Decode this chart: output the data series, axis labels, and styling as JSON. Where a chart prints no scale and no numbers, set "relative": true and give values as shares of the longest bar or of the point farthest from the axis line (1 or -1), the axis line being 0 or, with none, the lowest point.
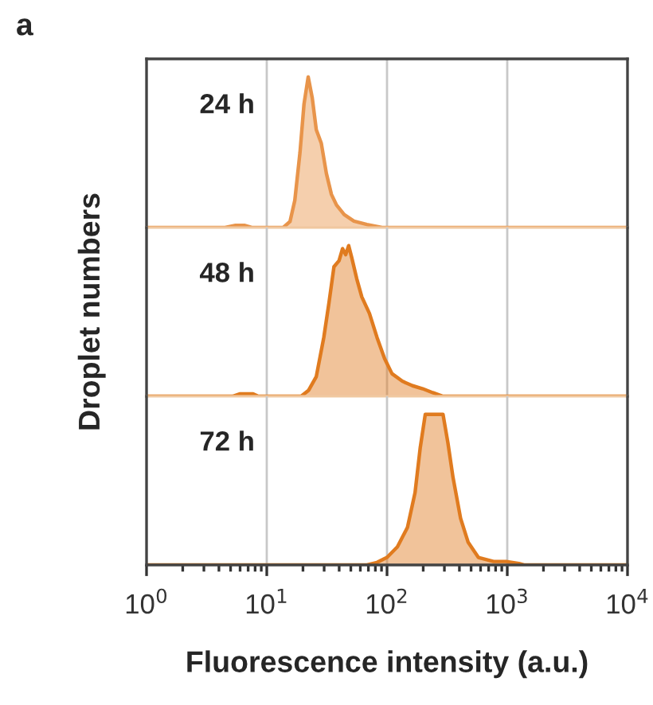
{
  "chart_data": [
    {
      "type": "area",
      "relative": true,
      "log": "x",
      "xlim": [
        1,
        10000
      ],
      "xticks": [
        1,
        10,
        100,
        1000,
        10000
      ],
      "grid": "x",
      "tick_labels": false,
      "annotations": [
        "a"
      ],
      "ylabel": "Droplet numbers",
      "series": [
        {
          "name": "24 h",
          "color": "#e8944a",
          "x": [
            1,
            4.5,
            5.5,
            6.5,
            7.5,
            13.7,
            15.6,
            17.1,
            18.9,
            20.4,
            22.1,
            23.9,
            25.8,
            28.4,
            31.3,
            34.5,
            38,
            44,
            53,
            68,
            91,
            10000
          ],
          "values": [
            0,
            0,
            0.015,
            0.015,
            0,
            0,
            0.04,
            0.18,
            0.5,
            0.82,
            1,
            0.86,
            0.65,
            0.56,
            0.36,
            0.22,
            0.15,
            0.086,
            0.043,
            0.02,
            0,
            0
          ]
        }
      ]
    },
    {
      "type": "area",
      "relative": true,
      "log": "x",
      "xlim": [
        1,
        10000
      ],
      "xticks": [
        1,
        10,
        100,
        1000,
        10000
      ],
      "grid": "x",
      "tick_labels": false,
      "series": [
        {
          "name": "48 h",
          "color": "#e07b1f",
          "x": [
            1,
            5.2,
            6.0,
            7.7,
            8.5,
            19.3,
            22.3,
            25.8,
            29.8,
            32.9,
            36.2,
            39.9,
            42.7,
            45.3,
            48,
            50.9,
            56,
            61.7,
            71.4,
            82.6,
            95.5,
            110,
            134,
            163,
            198,
            240,
            292,
            10000
          ],
          "values": [
            0,
            0,
            0.016,
            0.016,
            0,
            0,
            0.04,
            0.13,
            0.39,
            0.62,
            0.86,
            0.9,
            0.98,
            0.94,
            1,
            0.92,
            0.78,
            0.66,
            0.55,
            0.39,
            0.25,
            0.15,
            0.1,
            0.07,
            0.05,
            0.024,
            0,
            0
          ]
        }
      ]
    },
    {
      "type": "area",
      "relative": true,
      "log": "x",
      "xlim": [
        1,
        10000
      ],
      "grid": "x",
      "tick_labels": "x",
      "xlabel": "Fluorescence intensity (a.u.)",
      "xticks": [
        {
          "value": 1,
          "label": "10$^{0}$"
        },
        {
          "value": 10,
          "label": "10$^{1}$"
        },
        {
          "value": 100,
          "label": "10$^{2}$"
        },
        {
          "value": 1000,
          "label": "10$^{3}$"
        },
        {
          "value": 10000,
          "label": "10$^{4}$"
        }
      ],
      "series": [
        {
          "name": "72 h",
          "color": "#e07b1f",
          "x": [
            1,
            68,
            82.6,
            100,
            122,
            148,
            171,
            189,
            208,
            292,
            321,
            354,
            409,
            473,
            575,
            769,
            980,
            1250,
            1377,
            10000
          ],
          "values": [
            0,
            0,
            0.017,
            0.05,
            0.12,
            0.25,
            0.48,
            0.78,
            1,
            1,
            0.81,
            0.58,
            0.31,
            0.15,
            0.05,
            0.023,
            0.023,
            0.01,
            0,
            0
          ]
        }
      ]
    }
  ]
}
